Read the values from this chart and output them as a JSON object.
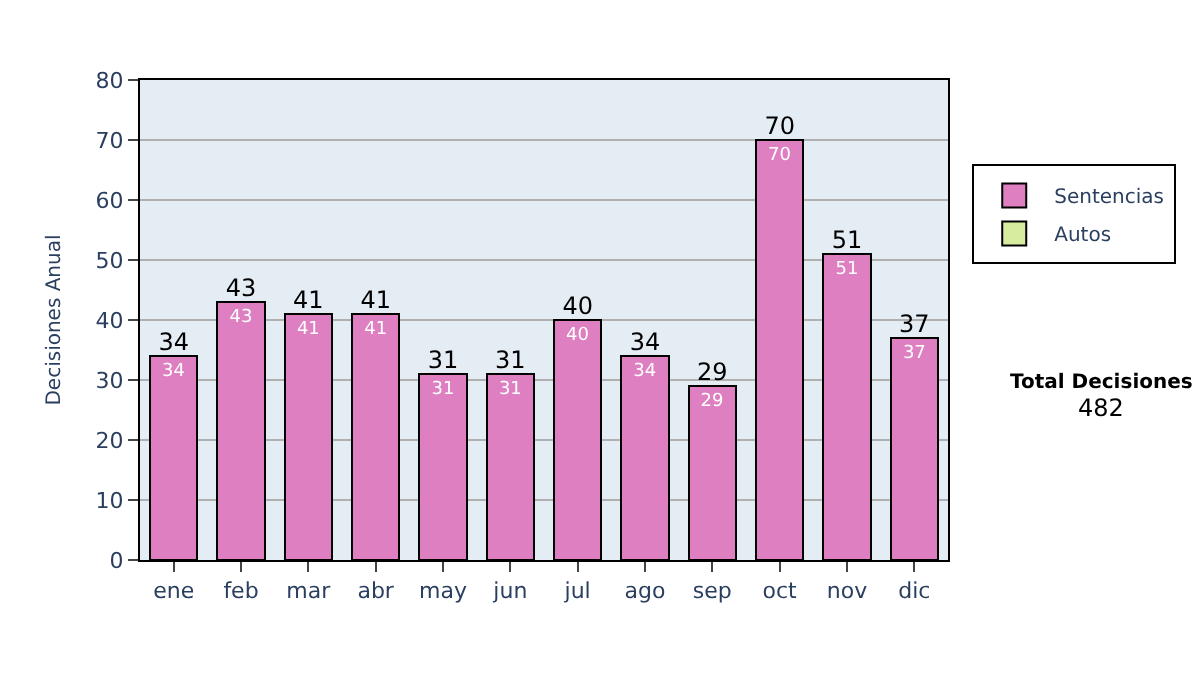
{
  "chart_data": {
    "type": "bar",
    "ylabel": "Decisiones Anual",
    "categories": [
      "ene",
      "feb",
      "mar",
      "abr",
      "may",
      "jun",
      "jul",
      "ago",
      "sep",
      "oct",
      "nov",
      "dic"
    ],
    "series": [
      {
        "name": "Sentencias",
        "color": "#dd7fc0",
        "values": [
          34,
          43,
          41,
          41,
          31,
          31,
          40,
          34,
          29,
          70,
          51,
          37
        ]
      },
      {
        "name": "Autos",
        "color": "#d8eca0",
        "values": [
          null,
          null,
          null,
          null,
          null,
          null,
          null,
          null,
          null,
          null,
          null,
          null
        ]
      }
    ],
    "stacked": true,
    "data_labels": true,
    "totals": [
      "34",
      "43",
      "41",
      "41",
      "31",
      "31",
      "40",
      "34",
      "29",
      "70",
      "51",
      "37"
    ],
    "ylim": [
      0,
      80
    ],
    "yticks": [
      0,
      10,
      20,
      30,
      40,
      50,
      60,
      70,
      80
    ],
    "grid": "y",
    "legend": "right",
    "annotations": [
      "Total Decisiones",
      "482"
    ]
  }
}
